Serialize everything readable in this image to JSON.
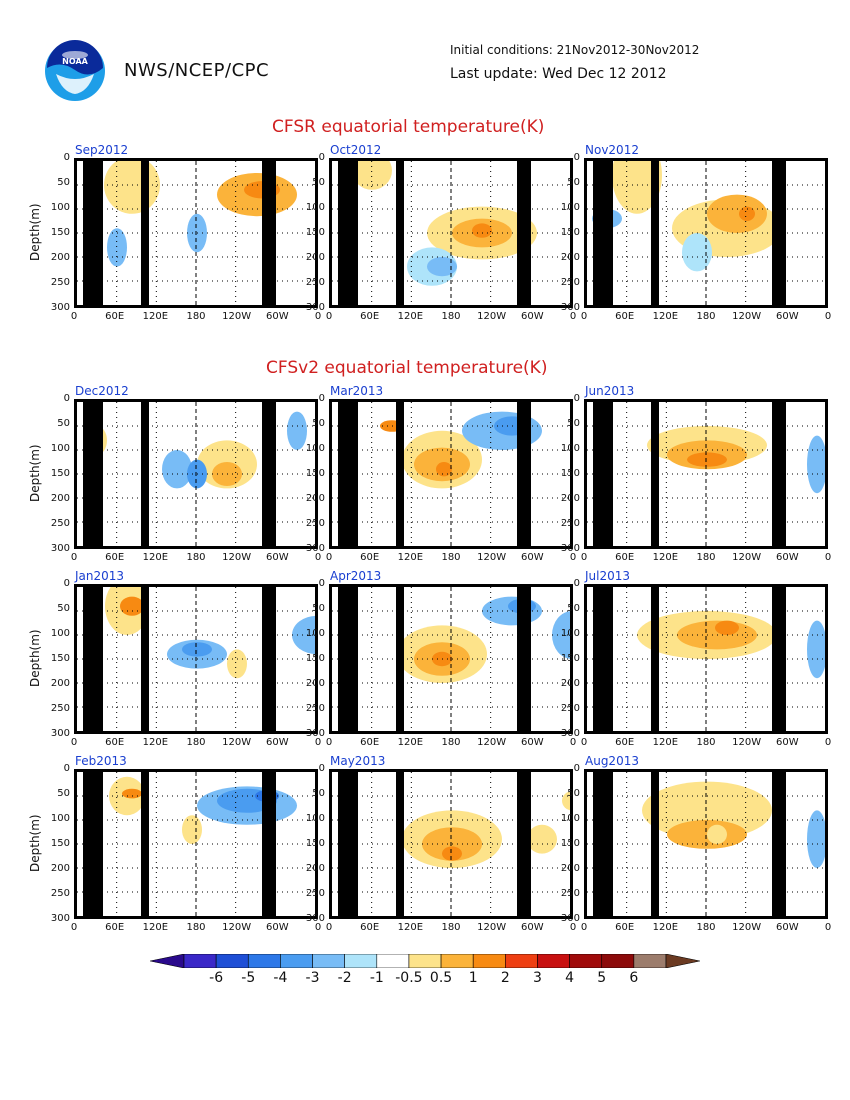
{
  "header": {
    "agency": "NWS/NCEP/CPC",
    "logo_text": "NOAA",
    "initial_conditions": "Initial conditions: 21Nov2012-30Nov2012",
    "last_update": "Last update: Wed Dec 12 2012"
  },
  "sections": {
    "cfsr_title": "CFSR equatorial temperature(K)",
    "cfsv2_title": "CFSv2 equatorial temperature(K)"
  },
  "axes": {
    "ylabel": "Depth(m)",
    "y_ticks": [
      "0",
      "50",
      "100",
      "150",
      "200",
      "250",
      "300"
    ],
    "x_ticks": [
      "0",
      "60E",
      "120E",
      "180",
      "120W",
      "60W",
      "0"
    ]
  },
  "chart_data": {
    "type": "heatmap",
    "xlabel": "",
    "ylabel": "Depth(m)",
    "ylim": [
      300,
      0
    ],
    "panels": [
      {
        "title": "Sep2012",
        "source": "CFSR"
      },
      {
        "title": "Oct2012",
        "source": "CFSR"
      },
      {
        "title": "Nov2012",
        "source": "CFSR"
      },
      {
        "title": "Dec2012",
        "source": "CFSv2"
      },
      {
        "title": "Mar2013",
        "source": "CFSv2"
      },
      {
        "title": "Jun2013",
        "source": "CFSv2"
      },
      {
        "title": "Jan2013",
        "source": "CFSv2"
      },
      {
        "title": "Apr2013",
        "source": "CFSv2"
      },
      {
        "title": "Jul2013",
        "source": "CFSv2"
      },
      {
        "title": "Feb2013",
        "source": "CFSv2"
      },
      {
        "title": "May2013",
        "source": "CFSv2"
      },
      {
        "title": "Aug2013",
        "source": "CFSv2"
      }
    ],
    "colorbar": {
      "labels": [
        "-6",
        "-5",
        "-4",
        "-3",
        "-2",
        "-1",
        "-0.5",
        "0.5",
        "1",
        "2",
        "3",
        "4",
        "5",
        "6"
      ],
      "colors": [
        "#2a0a8c",
        "#3a28c8",
        "#1e4fd6",
        "#2d78e8",
        "#4a9cf0",
        "#78bcf6",
        "#aee4fa",
        "#ffffff",
        "#fde38a",
        "#fbb33a",
        "#f78a12",
        "#ee3f12",
        "#c81010",
        "#a00a0a",
        "#8c0a0a",
        "#9c7c6c",
        "#6b3a22"
      ]
    }
  }
}
